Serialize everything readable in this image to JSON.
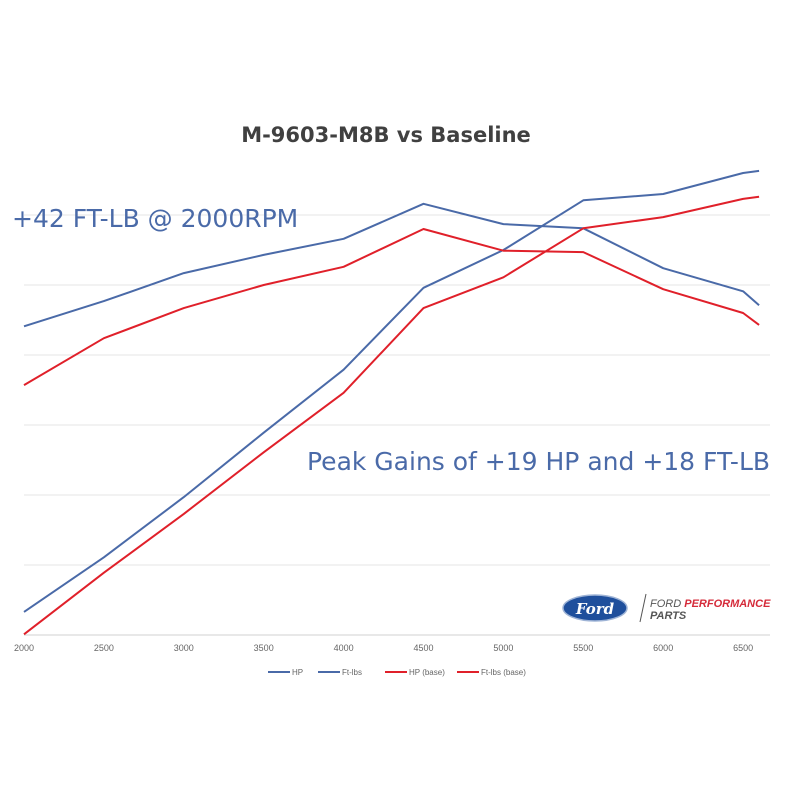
{
  "chart_data": {
    "type": "line",
    "title": "M-9603-M8B vs Baseline",
    "xlabel": "",
    "ylabel": "",
    "x": [
      2000,
      2500,
      3000,
      3500,
      4000,
      4500,
      5000,
      5500,
      6000,
      6500,
      6600
    ],
    "xticks": [
      "2000",
      "2500",
      "3000",
      "3500",
      "4000",
      "4500",
      "5000",
      "5500",
      "6000",
      "6500"
    ],
    "ylim": [
      0,
      7
    ],
    "y_tick_labels_shown": false,
    "grid": true,
    "legend_position": "bottom",
    "series": [
      {
        "name": "HP",
        "color": "#4a6aa8",
        "values": [
          0.33,
          1.11,
          1.97,
          2.89,
          3.79,
          4.96,
          5.5,
          6.21,
          6.3,
          6.6,
          6.63
        ]
      },
      {
        "name": "Ft-lbs",
        "color": "#4a6aa8",
        "values": [
          4.41,
          4.77,
          5.17,
          5.43,
          5.66,
          6.16,
          5.87,
          5.81,
          5.24,
          4.91,
          4.71
        ]
      },
      {
        "name": "HP (base)",
        "color": "#e0202a",
        "values": [
          0.01,
          0.89,
          1.73,
          2.61,
          3.46,
          4.67,
          5.11,
          5.81,
          5.97,
          6.23,
          6.26
        ]
      },
      {
        "name": "Ft-lbs (base)",
        "color": "#e0202a",
        "values": [
          3.57,
          4.24,
          4.67,
          5.0,
          5.26,
          5.8,
          5.49,
          5.47,
          4.94,
          4.6,
          4.43
        ]
      }
    ],
    "annotations": [
      "+42 FT-LB @ 2000RPM",
      "Peak Gains of +19 HP and +18 FT-LB"
    ],
    "annotation_color": "#4a6aa8"
  },
  "logo": {
    "brand": "Ford",
    "line1": "FORD",
    "line1_accent": "PERFORMANCE",
    "line2": "PARTS"
  }
}
